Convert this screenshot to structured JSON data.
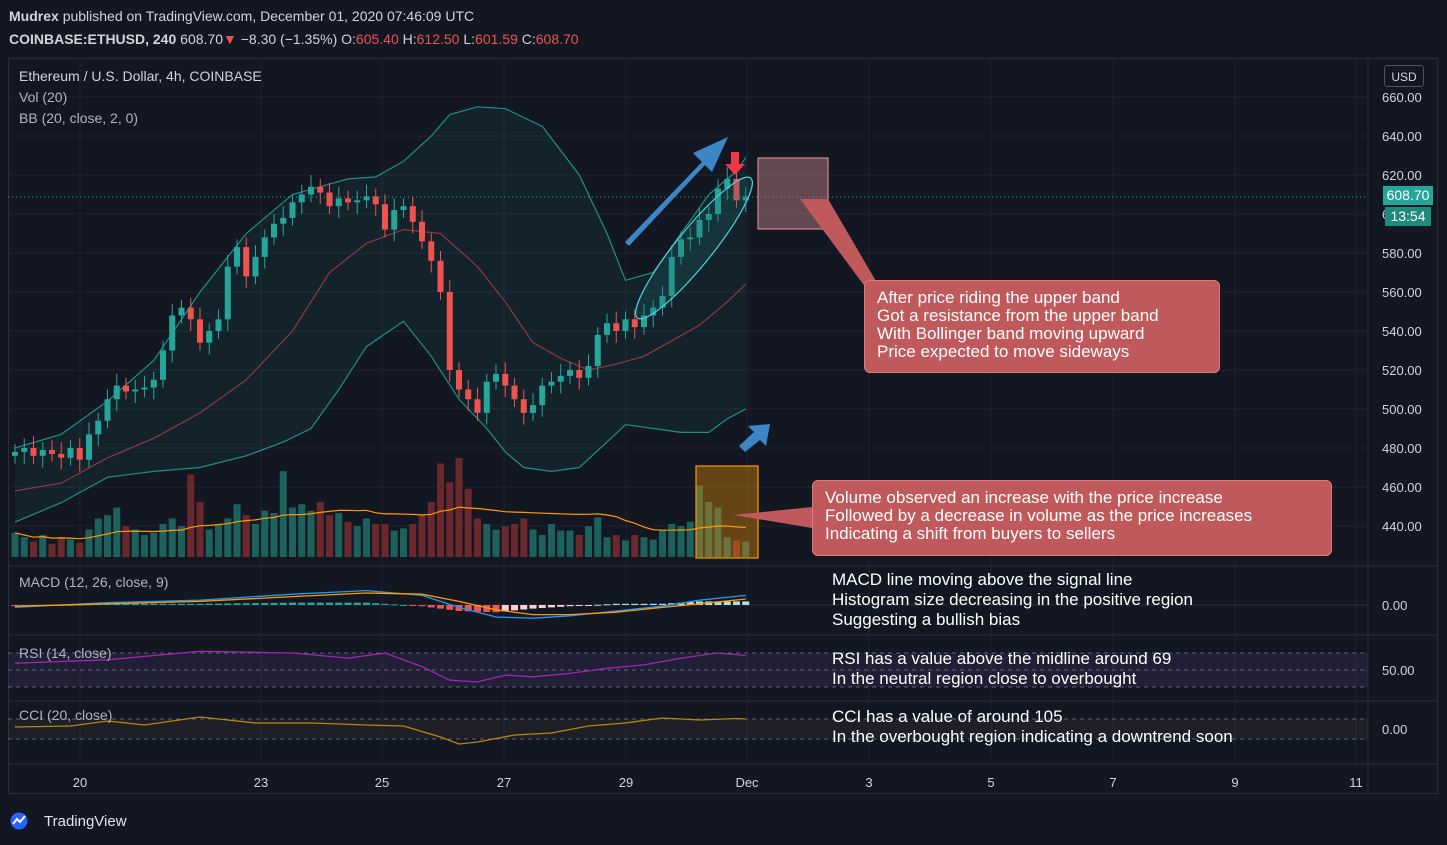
{
  "header": {
    "publisher": "Mudrex",
    "published_text": "published on TradingView.com, December 01, 2020 07:46:09 UTC",
    "symbol": "COINBASE:ETHUSD, 240",
    "last": "608.70",
    "change": "−8.30 (−1.35%)",
    "o_label": "O:",
    "o_value": "605.40",
    "h_label": "H:",
    "h_value": "612.50",
    "l_label": "L:",
    "l_value": "601.59",
    "c_label": "C:",
    "c_value": "608.70"
  },
  "legends": {
    "main_title": "Ethereum / U.S. Dollar, 4h, COINBASE",
    "vol": "Vol (20)",
    "bb": "BB (20, close, 2, 0)",
    "macd": "MACD (12, 26, close, 9)",
    "rsi": "RSI (14, close)",
    "cci": "CCI (20, close)"
  },
  "price_scale": {
    "currency": "USD",
    "current_price": "608.70",
    "countdown": "13:54",
    "macd_tick": "0.00",
    "rsi_tick": "50.00",
    "cci_tick": "0.00"
  },
  "annotations": {
    "callout1": [
      "After price riding the upper band",
      "Got a resistance from the upper band",
      "With Bollinger band moving upward",
      "Price expected to move sideways"
    ],
    "callout2": [
      "Volume observed an increase with the price increase",
      "Followed by a decrease in volume as the price increases",
      "Indicating a shift from buyers to sellers"
    ],
    "macd_note": [
      "MACD line moving above the signal line",
      "Histogram size decreasing in the positive region",
      "Suggesting a bullish bias"
    ],
    "rsi_note": [
      "RSI has a value above the midline around 69",
      "In the neutral region close to overbought"
    ],
    "cci_note": [
      "CCI has a value of around 105",
      "In the overbought region indicating a downtrend soon"
    ]
  },
  "branding": {
    "logo_text": "TradingView"
  },
  "colors": {
    "up": "#26a69a",
    "down": "#ef5350",
    "bb_band": "#1f8f82",
    "bb_basis": "#8b3a3a",
    "macd_line": "#2196f3",
    "signal_line": "#ff9800",
    "rsi": "#9c27b0",
    "cci": "#b8860b",
    "vol_ma": "#ff9800",
    "arrow": "#3d86c6"
  },
  "chart_data": {
    "type": "candlestick",
    "title": "Ethereum / U.S. Dollar, 4h, COINBASE",
    "interval": "4h",
    "x_tick_labels": [
      "20",
      "23",
      "25",
      "27",
      "29",
      "Dec",
      "3",
      "5",
      "7",
      "9",
      "11"
    ],
    "y_tick_labels": [
      "660.00",
      "640.00",
      "620.00",
      "600.00",
      "580.00",
      "560.00",
      "540.00",
      "520.00",
      "500.00",
      "480.00",
      "460.00",
      "440.00"
    ],
    "ylim": [
      425,
      670
    ],
    "last_close": 608.7,
    "closes": [
      478,
      480,
      476,
      479,
      477,
      475,
      480,
      474,
      487,
      494,
      505,
      512,
      509,
      510,
      511,
      515,
      530,
      548,
      552,
      546,
      534,
      540,
      546,
      573,
      583,
      568,
      578,
      588,
      595,
      598,
      606,
      610,
      614,
      611,
      604,
      608,
      606,
      607,
      609,
      605,
      592,
      602,
      604,
      596,
      586,
      576,
      560,
      520,
      510,
      505,
      498,
      514,
      518,
      512,
      505,
      498,
      502,
      512,
      514,
      517,
      520,
      516,
      522,
      538,
      544,
      540,
      546,
      542,
      548,
      552,
      558,
      578,
      587,
      588,
      597,
      600,
      613,
      618,
      607,
      609
    ],
    "bb_upper_points": [
      [
        0,
        480
      ],
      [
        5,
        487
      ],
      [
        10,
        504
      ],
      [
        15,
        525
      ],
      [
        20,
        560
      ],
      [
        25,
        590
      ],
      [
        30,
        610
      ],
      [
        33,
        614
      ],
      [
        36,
        618
      ],
      [
        39,
        619
      ],
      [
        42,
        627
      ],
      [
        45,
        640
      ],
      [
        47,
        651
      ],
      [
        50,
        655
      ],
      [
        53,
        654
      ],
      [
        57,
        645
      ],
      [
        61,
        620
      ],
      [
        64,
        590
      ],
      [
        66,
        566
      ],
      [
        69,
        570
      ],
      [
        72,
        590
      ],
      [
        75,
        610
      ],
      [
        78,
        622
      ],
      [
        79,
        629
      ]
    ],
    "bb_basis_points": [
      [
        0,
        458
      ],
      [
        5,
        462
      ],
      [
        10,
        475
      ],
      [
        15,
        485
      ],
      [
        20,
        498
      ],
      [
        25,
        515
      ],
      [
        30,
        540
      ],
      [
        34,
        570
      ],
      [
        38,
        585
      ],
      [
        42,
        592
      ],
      [
        46,
        590
      ],
      [
        50,
        573
      ],
      [
        53,
        555
      ],
      [
        56,
        534
      ],
      [
        59,
        526
      ],
      [
        62,
        520
      ],
      [
        65,
        523
      ],
      [
        68,
        527
      ],
      [
        71,
        535
      ],
      [
        74,
        543
      ],
      [
        77,
        555
      ],
      [
        79,
        564
      ]
    ],
    "bb_lower_points": [
      [
        0,
        442
      ],
      [
        5,
        452
      ],
      [
        10,
        465
      ],
      [
        15,
        468
      ],
      [
        20,
        470
      ],
      [
        25,
        476
      ],
      [
        29,
        483
      ],
      [
        32,
        490
      ],
      [
        35,
        510
      ],
      [
        38,
        532
      ],
      [
        42,
        545
      ],
      [
        45,
        527
      ],
      [
        48,
        505
      ],
      [
        51,
        490
      ],
      [
        53,
        478
      ],
      [
        55,
        470
      ],
      [
        58,
        468
      ],
      [
        61,
        470
      ],
      [
        64,
        483
      ],
      [
        66,
        492
      ],
      [
        69,
        490
      ],
      [
        72,
        488
      ],
      [
        75,
        488
      ],
      [
        77,
        495
      ],
      [
        79,
        500
      ]
    ],
    "volume_relative": [
      0.22,
      0.18,
      0.14,
      0.2,
      0.12,
      0.18,
      0.16,
      0.13,
      0.25,
      0.35,
      0.38,
      0.45,
      0.28,
      0.25,
      0.2,
      0.22,
      0.3,
      0.35,
      0.28,
      0.75,
      0.5,
      0.25,
      0.3,
      0.35,
      0.48,
      0.38,
      0.3,
      0.42,
      0.4,
      0.78,
      0.45,
      0.48,
      0.42,
      0.5,
      0.38,
      0.4,
      0.32,
      0.28,
      0.35,
      0.3,
      0.3,
      0.24,
      0.26,
      0.3,
      0.38,
      0.5,
      0.85,
      0.68,
      0.9,
      0.62,
      0.35,
      0.3,
      0.25,
      0.28,
      0.3,
      0.35,
      0.25,
      0.2,
      0.3,
      0.24,
      0.24,
      0.2,
      0.28,
      0.36,
      0.18,
      0.2,
      0.15,
      0.2,
      0.18,
      0.16,
      0.25,
      0.3,
      0.28,
      0.32,
      0.65,
      0.5,
      0.45,
      0.18,
      0.15,
      0.14
    ],
    "macd_line_points": [
      [
        0,
        -0.2
      ],
      [
        10,
        0.2
      ],
      [
        20,
        0.4
      ],
      [
        30,
        0.9
      ],
      [
        38,
        1.2
      ],
      [
        44,
        0.8
      ],
      [
        48,
        -0.2
      ],
      [
        52,
        -1.0
      ],
      [
        56,
        -1.1
      ],
      [
        60,
        -0.9
      ],
      [
        65,
        -0.5
      ],
      [
        70,
        -0.1
      ],
      [
        74,
        0.4
      ],
      [
        79,
        0.8
      ]
    ],
    "signal_line_points": [
      [
        0,
        -0.1
      ],
      [
        10,
        0.1
      ],
      [
        20,
        0.3
      ],
      [
        30,
        0.7
      ],
      [
        38,
        1.0
      ],
      [
        44,
        0.9
      ],
      [
        48,
        0.3
      ],
      [
        52,
        -0.4
      ],
      [
        56,
        -0.8
      ],
      [
        60,
        -0.8
      ],
      [
        65,
        -0.6
      ],
      [
        70,
        -0.2
      ],
      [
        74,
        0.1
      ],
      [
        79,
        0.5
      ]
    ],
    "rsi_points": [
      [
        0,
        58
      ],
      [
        10,
        62
      ],
      [
        20,
        72
      ],
      [
        30,
        70
      ],
      [
        36,
        64
      ],
      [
        40,
        70
      ],
      [
        44,
        54
      ],
      [
        47,
        38
      ],
      [
        50,
        36
      ],
      [
        53,
        44
      ],
      [
        56,
        42
      ],
      [
        60,
        46
      ],
      [
        64,
        52
      ],
      [
        68,
        56
      ],
      [
        72,
        64
      ],
      [
        76,
        70
      ],
      [
        79,
        67
      ]
    ],
    "cci_points": [
      [
        0,
        20
      ],
      [
        6,
        30
      ],
      [
        10,
        80
      ],
      [
        14,
        40
      ],
      [
        20,
        120
      ],
      [
        26,
        60
      ],
      [
        32,
        60
      ],
      [
        38,
        40
      ],
      [
        42,
        30
      ],
      [
        46,
        -80
      ],
      [
        48,
        -150
      ],
      [
        50,
        -130
      ],
      [
        54,
        -60
      ],
      [
        58,
        -40
      ],
      [
        62,
        30
      ],
      [
        66,
        60
      ],
      [
        70,
        110
      ],
      [
        74,
        90
      ],
      [
        78,
        105
      ],
      [
        79,
        100
      ]
    ]
  }
}
